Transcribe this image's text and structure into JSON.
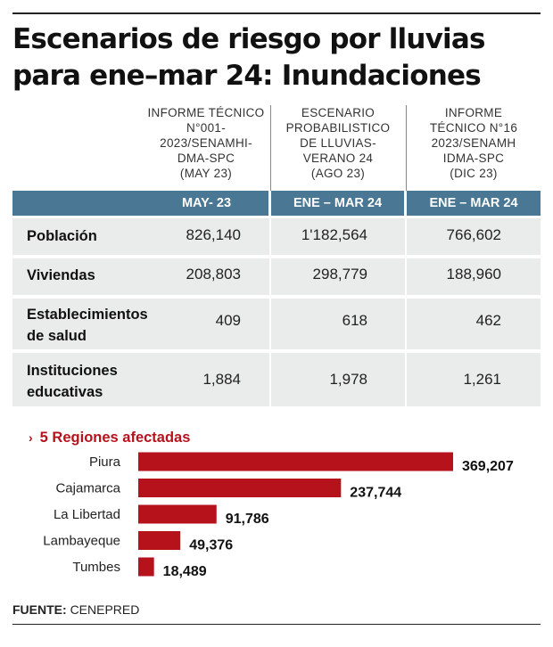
{
  "title": "Escenarios de riesgo por lluvias para ene–mar 24: Inundaciones",
  "table": {
    "columns": [
      {
        "header": [
          "INFORME TÉCNICO",
          "N°001-",
          "2023/SENAMHI-",
          "DMA-SPC",
          "(MAY 23)"
        ],
        "period": "MAY- 23"
      },
      {
        "header": [
          "ESCENARIO",
          "PROBABILISTICO",
          "DE LLUVIAS-",
          "VERANO 24",
          "(AGO 23)"
        ],
        "period": "ENE –  MAR 24"
      },
      {
        "header": [
          "INFORME",
          "TÉCNICO N°16",
          "2023/SENAMH",
          "IDMA-SPC",
          "(DIC 23)"
        ],
        "period": "ENE – MAR 24"
      }
    ],
    "rows": [
      {
        "label": [
          "Población"
        ],
        "values": [
          "826,140",
          "1'182,564",
          "766,602"
        ]
      },
      {
        "label": [
          "Viviendas"
        ],
        "values": [
          "208,803",
          "298,779",
          "188,960"
        ]
      },
      {
        "label": [
          "Establecimientos",
          "de salud"
        ],
        "values": [
          "409",
          "618",
          "462"
        ]
      },
      {
        "label": [
          "Instituciones",
          "educativas"
        ],
        "values": [
          "1,884",
          "1,978",
          "1,261"
        ]
      }
    ]
  },
  "chart_data": {
    "type": "bar",
    "orientation": "horizontal",
    "title": "5 Regiones afectadas",
    "categories": [
      "Piura",
      "Cajamarca",
      "La Libertad",
      "Lambayeque",
      "Tumbes"
    ],
    "values": [
      369207,
      237744,
      91786,
      49376,
      18489
    ],
    "labels": [
      "369,207",
      "237,744",
      "91,786",
      "49,376",
      "18,489"
    ],
    "bar_color": "#b5121b"
  },
  "source": {
    "label": "FUENTE:",
    "text": "CENEPRED"
  }
}
